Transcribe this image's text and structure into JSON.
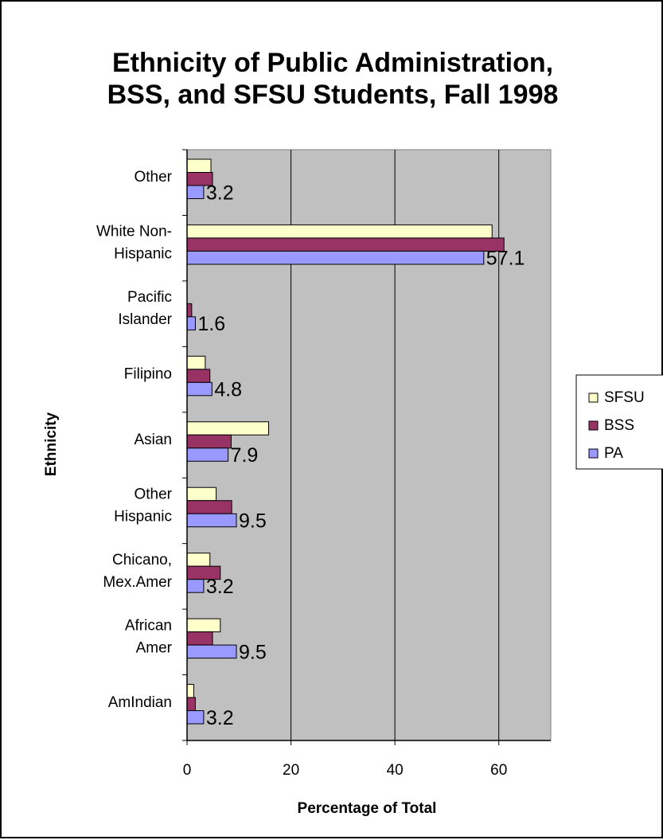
{
  "chart_data": {
    "type": "bar",
    "orientation": "horizontal",
    "title": [
      "Ethnicity of Public Administration,",
      "BSS, and SFSU Students, Fall 1998"
    ],
    "xlabel": "Percentage of Total",
    "ylabel": "Ethnicity",
    "xlim": [
      0,
      70
    ],
    "xticks": [
      0,
      20,
      40,
      60
    ],
    "grid": "vertical",
    "legend_position": "right",
    "categories": [
      [
        "Other"
      ],
      [
        "White Non-",
        "Hispanic"
      ],
      [
        "Pacific",
        "Islander"
      ],
      [
        "Filipino"
      ],
      [
        "Asian"
      ],
      [
        "Other",
        "Hispanic"
      ],
      [
        "Chicano,",
        "Mex.Amer"
      ],
      [
        "African",
        "Amer"
      ],
      [
        "AmIndian"
      ]
    ],
    "series": [
      {
        "name": "SFSU",
        "color": "#ffffcc",
        "values": [
          4.6,
          58.7,
          0,
          3.5,
          15.7,
          5.6,
          4.4,
          6.4,
          1.3
        ]
      },
      {
        "name": "BSS",
        "color": "#993366",
        "values": [
          4.9,
          61.0,
          0.9,
          4.4,
          8.5,
          8.6,
          6.4,
          4.9,
          1.6
        ]
      },
      {
        "name": "PA",
        "color": "#9999ff",
        "values": [
          3.2,
          57.1,
          1.6,
          4.8,
          7.9,
          9.5,
          3.2,
          9.5,
          3.2
        ]
      }
    ],
    "data_labels": [
      "3.2",
      "57.1",
      "1.6",
      "4.8",
      "7.9",
      "9.5",
      "3.2",
      "9.5",
      "3.2"
    ],
    "plot_background": "#c0c0c0"
  }
}
